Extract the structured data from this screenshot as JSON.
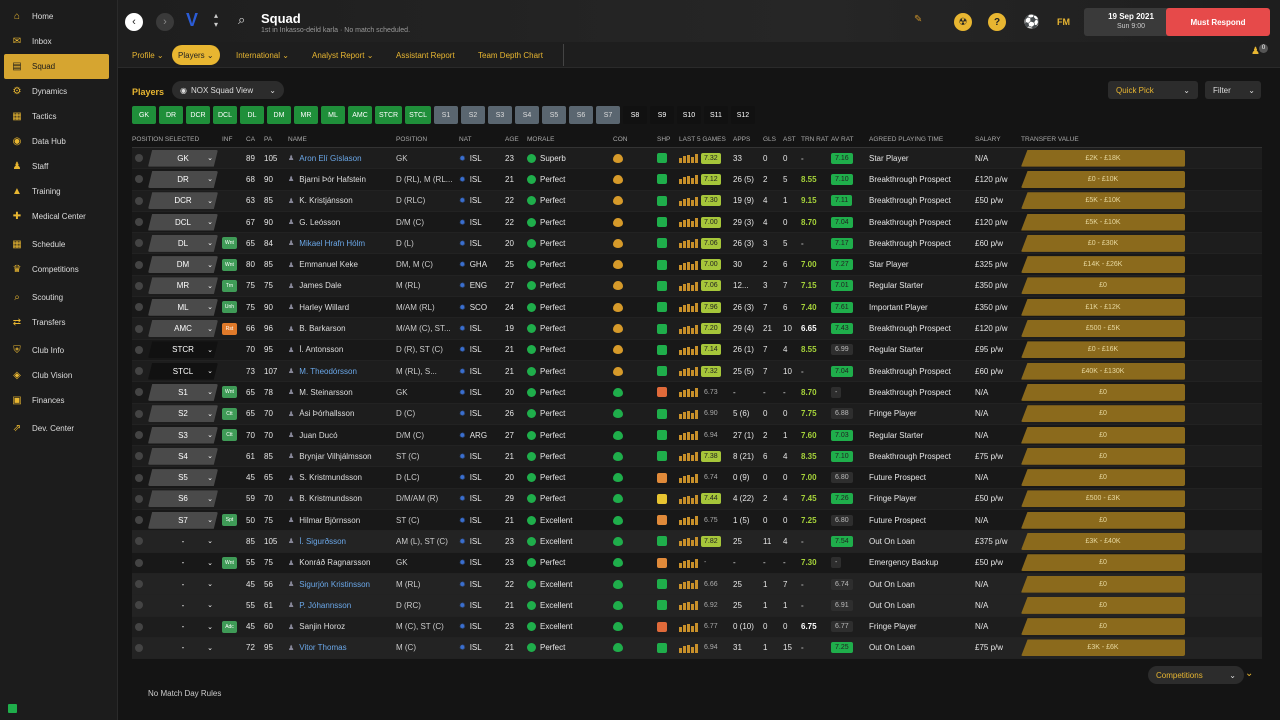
{
  "sidebar": {
    "items": [
      {
        "label": "Home",
        "icon": "home-icon",
        "glyph": "⌂"
      },
      {
        "label": "Inbox",
        "icon": "inbox-icon",
        "glyph": "✉"
      },
      {
        "label": "Squad",
        "icon": "squad-icon",
        "glyph": "▤",
        "active": true
      },
      {
        "label": "Dynamics",
        "icon": "dynamics-icon",
        "glyph": "⚙"
      },
      {
        "label": "Tactics",
        "icon": "tactics-icon",
        "glyph": "▦"
      },
      {
        "label": "Data Hub",
        "icon": "data-hub-icon",
        "glyph": "◉"
      },
      {
        "label": "Staff",
        "icon": "staff-icon",
        "glyph": "♟"
      },
      {
        "label": "Training",
        "icon": "training-icon",
        "glyph": "▲"
      },
      {
        "label": "Medical Center",
        "icon": "medical-icon",
        "glyph": "✚"
      },
      {
        "label": "Schedule",
        "icon": "schedule-icon",
        "glyph": "▦"
      },
      {
        "label": "Competitions",
        "icon": "trophy-icon",
        "glyph": "♛"
      },
      {
        "label": "Scouting",
        "icon": "scouting-icon",
        "glyph": "⌕"
      },
      {
        "label": "Transfers",
        "icon": "transfers-icon",
        "glyph": "⇄"
      },
      {
        "label": "Club Info",
        "icon": "club-info-icon",
        "glyph": "⛨"
      },
      {
        "label": "Club Vision",
        "icon": "club-vision-icon",
        "glyph": "◈"
      },
      {
        "label": "Finances",
        "icon": "finances-icon",
        "glyph": "▣"
      },
      {
        "label": "Dev. Center",
        "icon": "dev-center-icon",
        "glyph": "⇗"
      }
    ]
  },
  "header": {
    "title": "Squad",
    "subtitle": "1st in Inkasso-deild karla · No match scheduled.",
    "date": "19 Sep 2021",
    "time": "Sun 9:00",
    "respond": "Must Respond",
    "fm": "FM",
    "help": "?",
    "notifications": "0"
  },
  "tabs": [
    {
      "label": "Profile ⌄"
    },
    {
      "label": "Players ⌄",
      "active": true
    },
    {
      "label": "International ⌄"
    },
    {
      "label": "Analyst Report ⌄"
    },
    {
      "label": "Assistant Report"
    },
    {
      "label": "Team Depth Chart"
    }
  ],
  "toolbar": {
    "players_label": "Players",
    "view": "NOX Squad View",
    "quick_pick": "Quick Pick",
    "filter": "Filter"
  },
  "position_filters": [
    {
      "l": "GK",
      "t": "g"
    },
    {
      "l": "DR",
      "t": "g"
    },
    {
      "l": "DCR",
      "t": "g"
    },
    {
      "l": "DCL",
      "t": "g"
    },
    {
      "l": "DL",
      "t": "g"
    },
    {
      "l": "DM",
      "t": "g"
    },
    {
      "l": "MR",
      "t": "g"
    },
    {
      "l": "ML",
      "t": "g"
    },
    {
      "l": "AMC",
      "t": "g"
    },
    {
      "l": "STCR",
      "t": "g"
    },
    {
      "l": "STCL",
      "t": "g"
    },
    {
      "l": "S1",
      "t": "s"
    },
    {
      "l": "S2",
      "t": "s"
    },
    {
      "l": "S3",
      "t": "s"
    },
    {
      "l": "S4",
      "t": "s"
    },
    {
      "l": "S5",
      "t": "s"
    },
    {
      "l": "S6",
      "t": "s"
    },
    {
      "l": "S7",
      "t": "s"
    },
    {
      "l": "S8",
      "t": "d"
    },
    {
      "l": "S9",
      "t": "d"
    },
    {
      "l": "S10",
      "t": "d"
    },
    {
      "l": "S11",
      "t": "d"
    },
    {
      "l": "S12",
      "t": "d"
    }
  ],
  "columns": [
    "Position Selected",
    "Inf",
    "CA",
    "PA",
    "Name",
    "Position",
    "Nat",
    "Age",
    "Morale",
    "Con",
    "Shp",
    "Last 5 Games",
    "Apps",
    "Gls",
    "Ast",
    "Trn Rat",
    "Av Rat",
    "Agreed Playing Time",
    "Salary",
    "Transfer Value"
  ],
  "players": [
    {
      "sel": "GK",
      "inf": "",
      "ca": "89",
      "pa": "105",
      "name": "Aron Elí Gíslason",
      "link": true,
      "pos": "GK",
      "nat": "ISL",
      "age": "23",
      "morale": "Superb",
      "shp": "g",
      "l5": "7.32",
      "apps": "33",
      "gls": "0",
      "ast": "0",
      "trn": "-",
      "av": "7.16",
      "apt": "Star Player",
      "sal": "N/A",
      "tv": "£2K - £18K"
    },
    {
      "sel": "DR",
      "inf": "",
      "ca": "68",
      "pa": "90",
      "name": "Bjarni Þór Hafstein",
      "pos": "D (RL), M (RL...",
      "nat": "ISL",
      "age": "21",
      "morale": "Perfect",
      "shp": "g",
      "l5": "7.12",
      "apps": "26 (5)",
      "gls": "2",
      "ast": "5",
      "trn": "8.55",
      "av": "7.10",
      "apt": "Breakthrough Prospect",
      "sal": "£120 p/w",
      "tv": "£0 - £10K"
    },
    {
      "sel": "DCR",
      "inf": "",
      "ca": "63",
      "pa": "85",
      "name": "K. Kristjánsson",
      "pos": "D (RLC)",
      "nat": "ISL",
      "age": "22",
      "morale": "Perfect",
      "shp": "g",
      "l5": "7.30",
      "apps": "19 (9)",
      "gls": "4",
      "ast": "1",
      "trn": "9.15",
      "av": "7.11",
      "apt": "Breakthrough Prospect",
      "sal": "£50 p/w",
      "tv": "£5K - £10K"
    },
    {
      "sel": "DCL",
      "inf": "",
      "ca": "67",
      "pa": "90",
      "name": "G. Leósson",
      "pos": "D/M (C)",
      "nat": "ISL",
      "age": "22",
      "morale": "Perfect",
      "shp": "g",
      "l5": "7.00",
      "apps": "29 (3)",
      "gls": "4",
      "ast": "0",
      "trn": "8.70",
      "av": "7.04",
      "apt": "Breakthrough Prospect",
      "sal": "£120 p/w",
      "tv": "£5K - £10K"
    },
    {
      "sel": "DL",
      "inf": "Wnt",
      "ca": "65",
      "pa": "84",
      "name": "Mikael Hrafn Hólm",
      "link": true,
      "pos": "D (L)",
      "nat": "ISL",
      "age": "20",
      "morale": "Perfect",
      "shp": "g",
      "l5": "7.06",
      "apps": "26 (3)",
      "gls": "3",
      "ast": "5",
      "trn": "-",
      "av": "7.17",
      "apt": "Breakthrough Prospect",
      "sal": "£60 p/w",
      "tv": "£0 - £30K"
    },
    {
      "sel": "DM",
      "inf": "Wnt",
      "ca": "80",
      "pa": "85",
      "name": "Emmanuel Keke",
      "pos": "DM, M (C)",
      "nat": "GHA",
      "age": "25",
      "morale": "Perfect",
      "shp": "g",
      "l5": "7.00",
      "apps": "30",
      "gls": "2",
      "ast": "6",
      "trn": "7.00",
      "av": "7.27",
      "apt": "Star Player",
      "sal": "£325 p/w",
      "tv": "£14K - £26K"
    },
    {
      "sel": "MR",
      "inf": "Trn",
      "ca": "75",
      "pa": "75",
      "name": "James Dale",
      "pos": "M (RL)",
      "nat": "ENG",
      "age": "27",
      "morale": "Perfect",
      "shp": "g",
      "l5": "7.06",
      "apps": "12...",
      "gls": "3",
      "ast": "7",
      "trn": "7.15",
      "av": "7.01",
      "apt": "Regular Starter",
      "sal": "£350 p/w",
      "tv": "£0"
    },
    {
      "sel": "ML",
      "inf": "Unh",
      "ca": "75",
      "pa": "90",
      "name": "Harley Willard",
      "pos": "M/AM (RL)",
      "nat": "SCO",
      "age": "24",
      "morale": "Perfect",
      "shp": "g",
      "l5": "7.96",
      "apps": "26 (3)",
      "gls": "7",
      "ast": "6",
      "trn": "7.40",
      "av": "7.61",
      "apt": "Important Player",
      "sal": "£350 p/w",
      "tv": "£1K - £12K"
    },
    {
      "sel": "AMC",
      "inf": "Rst",
      "ca": "66",
      "pa": "96",
      "name": "B. Barkarson",
      "pos": "M/AM (C), ST...",
      "nat": "ISL",
      "age": "19",
      "morale": "Perfect",
      "shp": "g",
      "l5": "7.20",
      "apps": "29 (4)",
      "gls": "21",
      "ast": "10",
      "trn": "6.65",
      "av": "7.43",
      "apt": "Breakthrough Prospect",
      "sal": "£120 p/w",
      "tv": "£500 - £5K"
    },
    {
      "sel": "STCR",
      "inf": "",
      "ca": "70",
      "pa": "95",
      "name": "Í. Antonsson",
      "pos": "D (R), ST (C)",
      "nat": "ISL",
      "age": "21",
      "morale": "Perfect",
      "shp": "g",
      "l5": "7.14",
      "apps": "26 (1)",
      "gls": "7",
      "ast": "4",
      "trn": "8.55",
      "av": "6.99",
      "apt": "Regular Starter",
      "sal": "£95 p/w",
      "tv": "£0 - £16K"
    },
    {
      "sel": "STCL",
      "inf": "",
      "ca": "73",
      "pa": "107",
      "name": "M. Theodórsson",
      "link": true,
      "pos": "M (RL), S...",
      "nat": "ISL",
      "age": "21",
      "morale": "Perfect",
      "shp": "g",
      "l5": "7.32",
      "apps": "25 (5)",
      "gls": "7",
      "ast": "10",
      "trn": "-",
      "av": "7.04",
      "apt": "Breakthrough Prospect",
      "sal": "£60 p/w",
      "tv": "£40K - £130K"
    },
    {
      "sel": "S1",
      "inf": "Wnt",
      "ca": "65",
      "pa": "78",
      "name": "M. Steinarsson",
      "pos": "GK",
      "nat": "ISL",
      "age": "20",
      "morale": "Perfect",
      "shp": "r",
      "l5": "6.73",
      "apps": "-",
      "gls": "-",
      "ast": "-",
      "trn": "8.70",
      "av": "-",
      "apt": "Breakthrough Prospect",
      "sal": "N/A",
      "tv": "£0"
    },
    {
      "sel": "S2",
      "inf": "Ctt",
      "ca": "65",
      "pa": "70",
      "name": "Ási Þórhallsson",
      "pos": "D (C)",
      "nat": "ISL",
      "age": "26",
      "morale": "Perfect",
      "shp": "g",
      "l5": "6.90",
      "apps": "5 (6)",
      "gls": "0",
      "ast": "0",
      "trn": "7.75",
      "av": "6.88",
      "apt": "Fringe Player",
      "sal": "N/A",
      "tv": "£0"
    },
    {
      "sel": "S3",
      "inf": "Ctt",
      "ca": "70",
      "pa": "70",
      "name": "Juan Ducó",
      "pos": "D/M (C)",
      "nat": "ARG",
      "age": "27",
      "morale": "Perfect",
      "shp": "g",
      "l5": "6.94",
      "apps": "27 (1)",
      "gls": "2",
      "ast": "1",
      "trn": "7.60",
      "av": "7.03",
      "apt": "Regular Starter",
      "sal": "N/A",
      "tv": "£0"
    },
    {
      "sel": "S4",
      "inf": "",
      "ca": "61",
      "pa": "85",
      "name": "Brynjar Vilhjálmsson",
      "pos": "ST (C)",
      "nat": "ISL",
      "age": "21",
      "morale": "Perfect",
      "shp": "g",
      "l5": "7.38",
      "apps": "8 (21)",
      "gls": "6",
      "ast": "4",
      "trn": "8.35",
      "av": "7.10",
      "apt": "Breakthrough Prospect",
      "sal": "£75 p/w",
      "tv": "£0"
    },
    {
      "sel": "S5",
      "inf": "",
      "ca": "45",
      "pa": "65",
      "name": "S. Kristmundsson",
      "pos": "D (LC)",
      "nat": "ISL",
      "age": "20",
      "morale": "Perfect",
      "shp": "o",
      "l5": "6.74",
      "apps": "0 (9)",
      "gls": "0",
      "ast": "0",
      "trn": "7.00",
      "av": "6.80",
      "apt": "Future Prospect",
      "sal": "N/A",
      "tv": "£0"
    },
    {
      "sel": "S6",
      "inf": "",
      "ca": "59",
      "pa": "70",
      "name": "B. Kristmundsson",
      "pos": "D/M/AM (R)",
      "nat": "ISL",
      "age": "29",
      "morale": "Perfect",
      "shp": "y",
      "l5": "7.44",
      "apps": "4 (22)",
      "gls": "2",
      "ast": "4",
      "trn": "7.45",
      "av": "7.26",
      "apt": "Fringe Player",
      "sal": "£50 p/w",
      "tv": "£500 - £3K"
    },
    {
      "sel": "S7",
      "inf": "Spt",
      "ca": "50",
      "pa": "75",
      "name": "Hilmar Björnsson",
      "pos": "ST (C)",
      "nat": "ISL",
      "age": "21",
      "morale": "Excellent",
      "shp": "o",
      "l5": "6.75",
      "apps": "1 (5)",
      "gls": "0",
      "ast": "0",
      "trn": "7.25",
      "av": "6.80",
      "apt": "Future Prospect",
      "sal": "N/A",
      "tv": "£0"
    },
    {
      "sel": "-",
      "inf": "",
      "ca": "85",
      "pa": "105",
      "name": "Í. Sigurðsson",
      "loan": true,
      "pos": "AM (L), ST (C)",
      "nat": "ISL",
      "age": "23",
      "morale": "Excellent",
      "shp": "g",
      "l5": "7.82",
      "apps": "25",
      "gls": "11",
      "ast": "4",
      "trn": "-",
      "av": "7.54",
      "apt": "Out On Loan",
      "sal": "£375 p/w",
      "tv": "£3K - £40K"
    },
    {
      "sel": "-",
      "inf": "Wnt",
      "ca": "55",
      "pa": "75",
      "name": "Konráð Ragnarsson",
      "pos": "GK",
      "nat": "ISL",
      "age": "23",
      "morale": "Perfect",
      "shp": "o",
      "l5": "-",
      "apps": "-",
      "gls": "-",
      "ast": "-",
      "trn": "7.30",
      "av": "-",
      "apt": "Emergency Backup",
      "sal": "£50 p/w",
      "tv": "£0"
    },
    {
      "sel": "-",
      "inf": "",
      "ca": "45",
      "pa": "56",
      "name": "Sigurjón Kristinsson",
      "loan": true,
      "pos": "M (RL)",
      "nat": "ISL",
      "age": "22",
      "morale": "Excellent",
      "shp": "g",
      "l5": "6.66",
      "apps": "25",
      "gls": "1",
      "ast": "7",
      "trn": "-",
      "av": "6.74",
      "apt": "Out On Loan",
      "sal": "N/A",
      "tv": "£0"
    },
    {
      "sel": "-",
      "inf": "",
      "ca": "55",
      "pa": "61",
      "name": "P. Jóhannsson",
      "loan": true,
      "pos": "D (RC)",
      "nat": "ISL",
      "age": "21",
      "morale": "Excellent",
      "shp": "g",
      "l5": "6.92",
      "apps": "25",
      "gls": "1",
      "ast": "1",
      "trn": "-",
      "av": "6.91",
      "apt": "Out On Loan",
      "sal": "N/A",
      "tv": "£0"
    },
    {
      "sel": "-",
      "inf": "Adc",
      "ca": "45",
      "pa": "60",
      "name": "Sanjin Horoz",
      "pos": "M (C), ST (C)",
      "nat": "ISL",
      "age": "23",
      "morale": "Excellent",
      "shp": "r",
      "l5": "6.77",
      "apps": "0 (10)",
      "gls": "0",
      "ast": "0",
      "trn": "6.75",
      "av": "6.77",
      "apt": "Fringe Player",
      "sal": "N/A",
      "tv": "£0"
    },
    {
      "sel": "-",
      "inf": "",
      "ca": "72",
      "pa": "95",
      "name": "Vitor Thomas",
      "loan": true,
      "pos": "M (C)",
      "nat": "ISL",
      "age": "21",
      "morale": "Perfect",
      "shp": "g",
      "l5": "6.94",
      "apps": "31",
      "gls": "1",
      "ast": "15",
      "trn": "-",
      "av": "7.25",
      "apt": "Out On Loan",
      "sal": "£75 p/w",
      "tv": "£3K - £6K"
    }
  ],
  "footer": {
    "competitions": "Competitions",
    "no_match": "No Match Day Rules"
  },
  "colors": {
    "accent": "#e8b631",
    "respond": "#e64a4a",
    "green": "#1fae4b",
    "rating": "#a6c63a"
  }
}
